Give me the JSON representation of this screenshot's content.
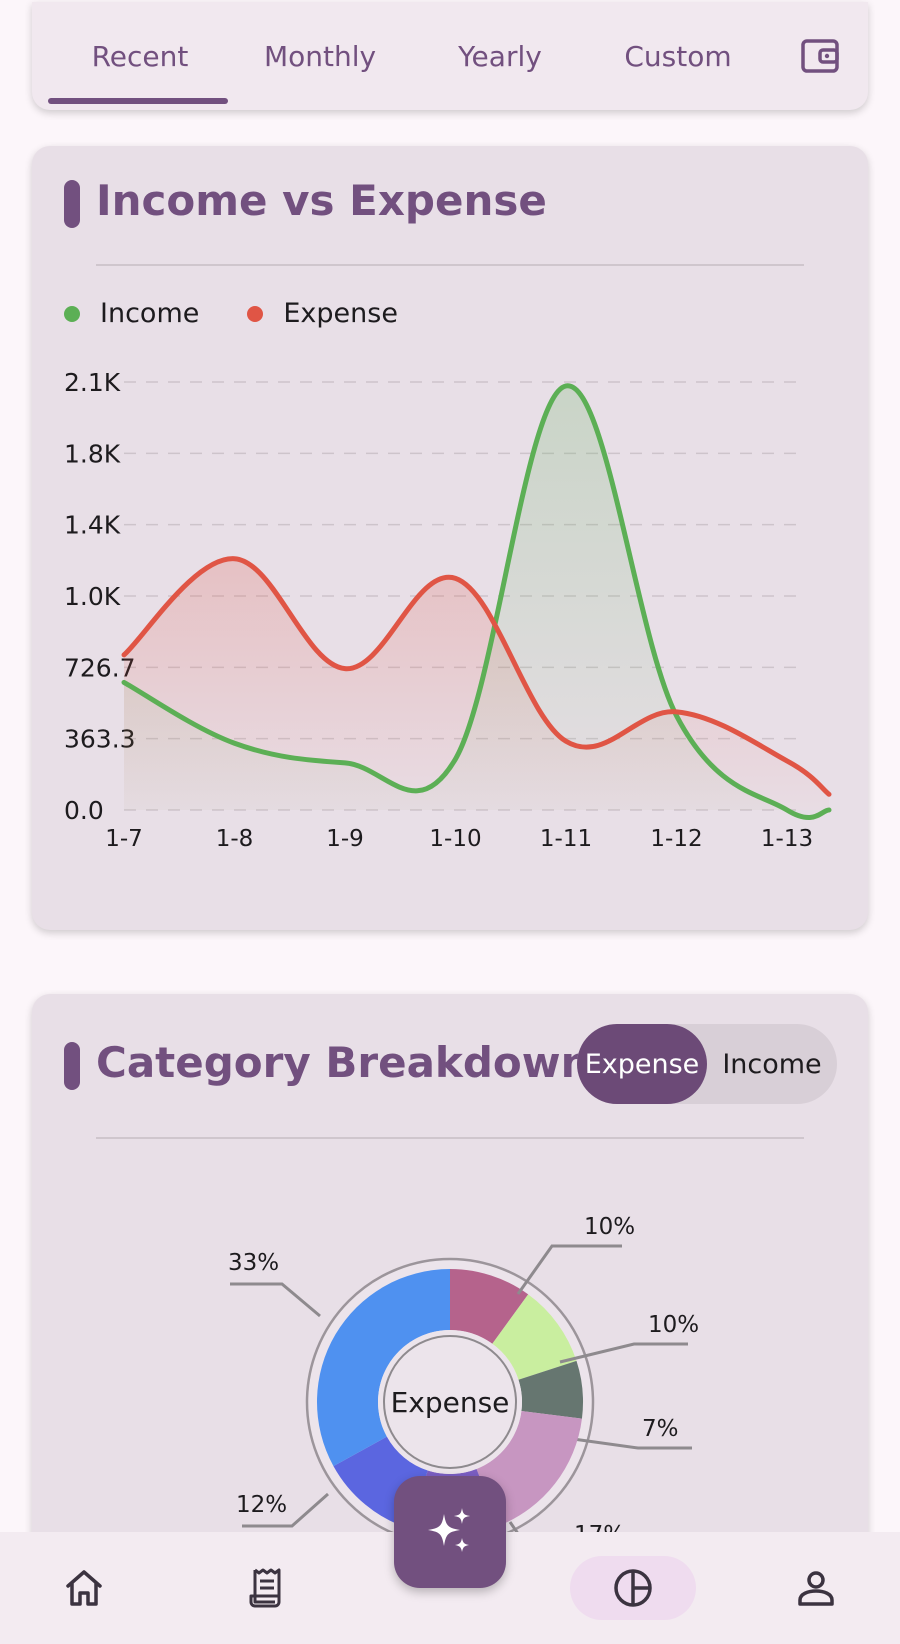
{
  "tabs": [
    {
      "label": "Recent",
      "active": true
    },
    {
      "label": "Monthly",
      "active": false
    },
    {
      "label": "Yearly",
      "active": false
    },
    {
      "label": "Custom",
      "active": false
    }
  ],
  "colors": {
    "accent": "#72507f",
    "income": "#5caf55",
    "expense": "#e05545"
  },
  "income_expense": {
    "title": "Income vs Expense",
    "legend": [
      "Income",
      "Expense"
    ]
  },
  "category": {
    "title": "Category Breakdown",
    "toggle": {
      "selected": "Expense",
      "other": "Income"
    },
    "center_label": "Expense"
  },
  "chart_data": [
    {
      "type": "line",
      "title": "",
      "categories": [
        "1-7",
        "1-8",
        "1-9",
        "1-10",
        "1-11",
        "1-12",
        "1-13"
      ],
      "y_ticks": [
        "0.0",
        "363.3",
        "726.7",
        "1.0K",
        "1.4K",
        "1.8K",
        "2.1K"
      ],
      "ylim": [
        0,
        2180
      ],
      "series": [
        {
          "name": "Income",
          "values": [
            650,
            340,
            240,
            260,
            2160,
            480,
            0
          ]
        },
        {
          "name": "Expense",
          "values": [
            790,
            1280,
            720,
            1180,
            350,
            500,
            250
          ]
        }
      ],
      "area_fill": true,
      "grid": true,
      "legend": "top-left"
    },
    {
      "type": "pie",
      "donut": true,
      "slices": [
        {
          "label": "10%",
          "value": 10,
          "color": "#b5638c"
        },
        {
          "label": "10%",
          "value": 10,
          "color": "#c9ee9f"
        },
        {
          "label": "7%",
          "value": 7,
          "color": "#667670"
        },
        {
          "label": "17%",
          "value": 17,
          "color": "#c796c1"
        },
        {
          "label": "",
          "value": 11,
          "color": "#7b5ec2"
        },
        {
          "label": "12%",
          "value": 12,
          "color": "#5b66e0"
        },
        {
          "label": "33%",
          "value": 33,
          "color": "#4f91f0"
        }
      ]
    }
  ],
  "nav": {
    "items": [
      "home-icon",
      "receipt-icon",
      "pie-chart-icon",
      "person-icon"
    ],
    "fab_icon": "sparkle-icon"
  }
}
